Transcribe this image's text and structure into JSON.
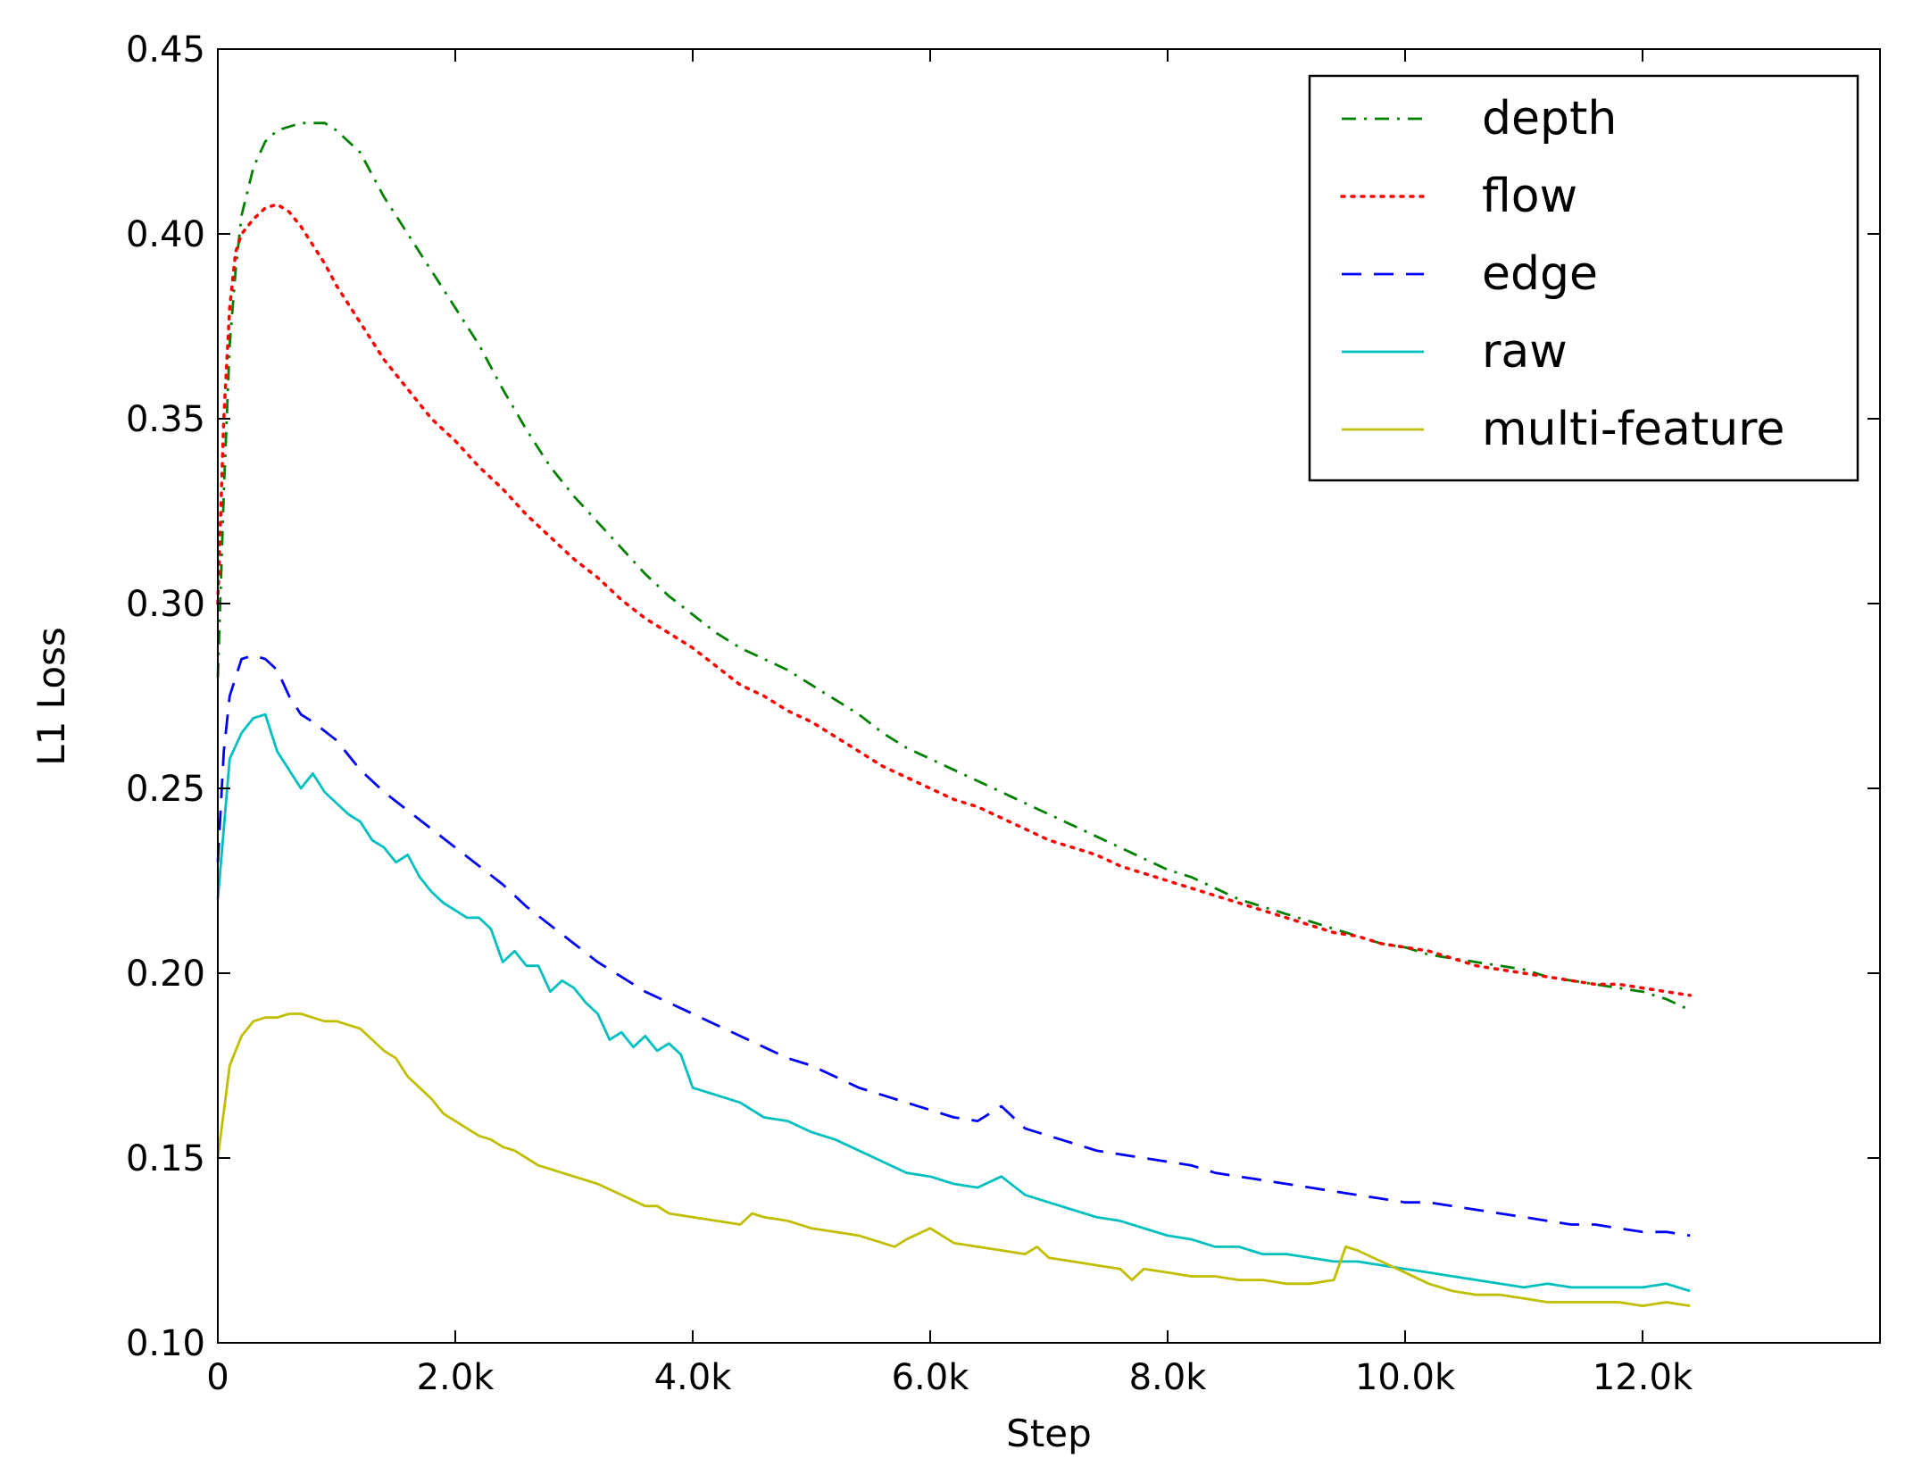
{
  "chart_data": {
    "type": "line",
    "title": "",
    "xlabel": "Step",
    "ylabel": "L1 Loss",
    "xlim": [
      0,
      14000
    ],
    "ylim": [
      0.1,
      0.45
    ],
    "grid": false,
    "legend_position": "top-right",
    "xticks": [
      0,
      2000,
      4000,
      6000,
      8000,
      10000,
      12000
    ],
    "xtick_labels": [
      "0",
      "2.0k",
      "4.0k",
      "6.0k",
      "8.0k",
      "10.0k",
      "12.0k"
    ],
    "yticks": [
      0.1,
      0.15,
      0.2,
      0.25,
      0.3,
      0.35,
      0.4,
      0.45
    ],
    "ytick_labels": [
      "0.10",
      "0.15",
      "0.20",
      "0.25",
      "0.30",
      "0.35",
      "0.40",
      "0.45"
    ],
    "series": [
      {
        "name": "depth",
        "color": "#008000",
        "style": "dashdot",
        "x": [
          0,
          50,
          100,
          150,
          200,
          300,
          400,
          500,
          600,
          700,
          800,
          900,
          1000,
          1200,
          1400,
          1600,
          1800,
          2000,
          2200,
          2400,
          2600,
          2800,
          3000,
          3200,
          3400,
          3600,
          3800,
          4000,
          4200,
          4400,
          4600,
          4800,
          5000,
          5200,
          5400,
          5600,
          5800,
          6000,
          6200,
          6400,
          6600,
          6800,
          7000,
          7200,
          7400,
          7600,
          7800,
          8000,
          8200,
          8400,
          8600,
          8800,
          9000,
          9200,
          9400,
          9600,
          9800,
          10000,
          10200,
          10400,
          10600,
          10800,
          11000,
          11200,
          11400,
          11600,
          11800,
          12000,
          12200,
          12400
        ],
        "values": [
          0.28,
          0.33,
          0.37,
          0.39,
          0.405,
          0.418,
          0.425,
          0.428,
          0.429,
          0.43,
          0.43,
          0.43,
          0.428,
          0.422,
          0.41,
          0.4,
          0.39,
          0.38,
          0.37,
          0.358,
          0.347,
          0.337,
          0.329,
          0.322,
          0.315,
          0.308,
          0.302,
          0.297,
          0.292,
          0.288,
          0.285,
          0.282,
          0.278,
          0.274,
          0.27,
          0.265,
          0.261,
          0.258,
          0.255,
          0.252,
          0.249,
          0.246,
          0.243,
          0.24,
          0.237,
          0.234,
          0.231,
          0.228,
          0.226,
          0.223,
          0.22,
          0.218,
          0.216,
          0.214,
          0.212,
          0.21,
          0.208,
          0.207,
          0.205,
          0.204,
          0.203,
          0.202,
          0.201,
          0.199,
          0.198,
          0.197,
          0.196,
          0.195,
          0.193,
          0.19
        ]
      },
      {
        "name": "flow",
        "color": "#ff0000",
        "style": "dotted",
        "x": [
          0,
          50,
          100,
          150,
          200,
          300,
          400,
          500,
          600,
          700,
          800,
          900,
          1000,
          1200,
          1400,
          1600,
          1800,
          2000,
          2200,
          2400,
          2600,
          2800,
          3000,
          3200,
          3400,
          3600,
          3800,
          4000,
          4200,
          4400,
          4600,
          4800,
          5000,
          5200,
          5400,
          5600,
          5800,
          6000,
          6200,
          6400,
          6600,
          6800,
          7000,
          7200,
          7400,
          7600,
          7800,
          8000,
          8200,
          8400,
          8600,
          8800,
          9000,
          9200,
          9400,
          9600,
          9800,
          10000,
          10200,
          10400,
          10600,
          10800,
          11000,
          11200,
          11400,
          11600,
          11800,
          12000,
          12200,
          12400
        ],
        "values": [
          0.3,
          0.35,
          0.38,
          0.395,
          0.4,
          0.404,
          0.407,
          0.408,
          0.406,
          0.402,
          0.397,
          0.392,
          0.386,
          0.376,
          0.366,
          0.358,
          0.35,
          0.344,
          0.337,
          0.331,
          0.324,
          0.318,
          0.312,
          0.307,
          0.301,
          0.296,
          0.292,
          0.288,
          0.283,
          0.278,
          0.275,
          0.271,
          0.268,
          0.264,
          0.26,
          0.256,
          0.253,
          0.25,
          0.247,
          0.245,
          0.242,
          0.239,
          0.236,
          0.234,
          0.232,
          0.229,
          0.227,
          0.225,
          0.223,
          0.221,
          0.219,
          0.217,
          0.215,
          0.213,
          0.211,
          0.21,
          0.208,
          0.207,
          0.206,
          0.204,
          0.202,
          0.201,
          0.2,
          0.199,
          0.198,
          0.197,
          0.197,
          0.196,
          0.195,
          0.194
        ]
      },
      {
        "name": "edge",
        "color": "#0000ff",
        "style": "dashed",
        "x": [
          0,
          50,
          100,
          200,
          300,
          400,
          500,
          600,
          700,
          800,
          1000,
          1200,
          1400,
          1600,
          1800,
          2000,
          2200,
          2400,
          2600,
          2800,
          3000,
          3200,
          3400,
          3600,
          3800,
          4000,
          4200,
          4400,
          4600,
          4800,
          5000,
          5200,
          5400,
          5600,
          5800,
          6000,
          6200,
          6400,
          6600,
          6700,
          6800,
          7000,
          7200,
          7400,
          7600,
          7800,
          8000,
          8200,
          8400,
          8600,
          8800,
          9000,
          9200,
          9400,
          9600,
          9800,
          10000,
          10200,
          10400,
          10600,
          10800,
          11000,
          11200,
          11400,
          11600,
          11800,
          12000,
          12200,
          12400
        ],
        "values": [
          0.23,
          0.26,
          0.275,
          0.285,
          0.286,
          0.285,
          0.282,
          0.275,
          0.27,
          0.268,
          0.263,
          0.255,
          0.249,
          0.244,
          0.239,
          0.234,
          0.229,
          0.224,
          0.218,
          0.213,
          0.208,
          0.203,
          0.199,
          0.195,
          0.192,
          0.189,
          0.186,
          0.183,
          0.18,
          0.177,
          0.175,
          0.172,
          0.169,
          0.167,
          0.165,
          0.163,
          0.161,
          0.16,
          0.164,
          0.161,
          0.158,
          0.156,
          0.154,
          0.152,
          0.151,
          0.15,
          0.149,
          0.148,
          0.146,
          0.145,
          0.144,
          0.143,
          0.142,
          0.141,
          0.14,
          0.139,
          0.138,
          0.138,
          0.137,
          0.136,
          0.135,
          0.134,
          0.133,
          0.132,
          0.132,
          0.131,
          0.13,
          0.13,
          0.129
        ]
      },
      {
        "name": "raw",
        "color": "#00bfbf",
        "style": "solid",
        "x": [
          0,
          100,
          200,
          300,
          400,
          500,
          600,
          700,
          800,
          900,
          1000,
          1100,
          1200,
          1300,
          1400,
          1500,
          1600,
          1700,
          1800,
          1900,
          2000,
          2100,
          2200,
          2300,
          2400,
          2500,
          2600,
          2700,
          2800,
          2900,
          3000,
          3100,
          3200,
          3300,
          3400,
          3500,
          3600,
          3700,
          3800,
          3900,
          4000,
          4200,
          4400,
          4600,
          4800,
          5000,
          5200,
          5400,
          5600,
          5800,
          6000,
          6200,
          6400,
          6600,
          6800,
          7000,
          7200,
          7400,
          7600,
          7800,
          8000,
          8200,
          8400,
          8600,
          8800,
          9000,
          9200,
          9400,
          9600,
          9800,
          10000,
          10200,
          10400,
          10600,
          10800,
          11000,
          11200,
          11400,
          11600,
          11800,
          12000,
          12200,
          12400
        ],
        "values": [
          0.22,
          0.258,
          0.265,
          0.269,
          0.27,
          0.26,
          0.255,
          0.25,
          0.254,
          0.249,
          0.246,
          0.243,
          0.241,
          0.236,
          0.234,
          0.23,
          0.232,
          0.226,
          0.222,
          0.219,
          0.217,
          0.215,
          0.215,
          0.212,
          0.203,
          0.206,
          0.202,
          0.202,
          0.195,
          0.198,
          0.196,
          0.192,
          0.189,
          0.182,
          0.184,
          0.18,
          0.183,
          0.179,
          0.181,
          0.178,
          0.169,
          0.167,
          0.165,
          0.161,
          0.16,
          0.157,
          0.155,
          0.152,
          0.149,
          0.146,
          0.145,
          0.143,
          0.142,
          0.145,
          0.14,
          0.138,
          0.136,
          0.134,
          0.133,
          0.131,
          0.129,
          0.128,
          0.126,
          0.126,
          0.124,
          0.124,
          0.123,
          0.122,
          0.122,
          0.121,
          0.12,
          0.119,
          0.118,
          0.117,
          0.116,
          0.115,
          0.116,
          0.115,
          0.115,
          0.115,
          0.115,
          0.116,
          0.114
        ]
      },
      {
        "name": "multi-feature",
        "color": "#bfbf00",
        "style": "solid",
        "x": [
          0,
          100,
          200,
          300,
          400,
          500,
          600,
          700,
          800,
          900,
          1000,
          1100,
          1200,
          1300,
          1400,
          1500,
          1600,
          1700,
          1800,
          1900,
          2000,
          2100,
          2200,
          2300,
          2400,
          2500,
          2600,
          2700,
          2800,
          2900,
          3000,
          3200,
          3400,
          3600,
          3700,
          3800,
          4000,
          4200,
          4400,
          4500,
          4600,
          4800,
          5000,
          5200,
          5400,
          5600,
          5700,
          5800,
          6000,
          6100,
          6200,
          6400,
          6600,
          6800,
          6900,
          7000,
          7200,
          7400,
          7600,
          7700,
          7800,
          8000,
          8200,
          8400,
          8600,
          8800,
          9000,
          9200,
          9400,
          9500,
          9600,
          9800,
          10000,
          10200,
          10400,
          10600,
          10800,
          11000,
          11200,
          11400,
          11600,
          11800,
          12000,
          12200,
          12400
        ],
        "values": [
          0.15,
          0.175,
          0.183,
          0.187,
          0.188,
          0.188,
          0.189,
          0.189,
          0.188,
          0.187,
          0.187,
          0.186,
          0.185,
          0.182,
          0.179,
          0.177,
          0.172,
          0.169,
          0.166,
          0.162,
          0.16,
          0.158,
          0.156,
          0.155,
          0.153,
          0.152,
          0.15,
          0.148,
          0.147,
          0.146,
          0.145,
          0.143,
          0.14,
          0.137,
          0.137,
          0.135,
          0.134,
          0.133,
          0.132,
          0.135,
          0.134,
          0.133,
          0.131,
          0.13,
          0.129,
          0.127,
          0.126,
          0.128,
          0.131,
          0.129,
          0.127,
          0.126,
          0.125,
          0.124,
          0.126,
          0.123,
          0.122,
          0.121,
          0.12,
          0.117,
          0.12,
          0.119,
          0.118,
          0.118,
          0.117,
          0.117,
          0.116,
          0.116,
          0.117,
          0.126,
          0.125,
          0.122,
          0.119,
          0.116,
          0.114,
          0.113,
          0.113,
          0.112,
          0.111,
          0.111,
          0.111,
          0.111,
          0.11,
          0.111,
          0.11
        ]
      }
    ]
  }
}
